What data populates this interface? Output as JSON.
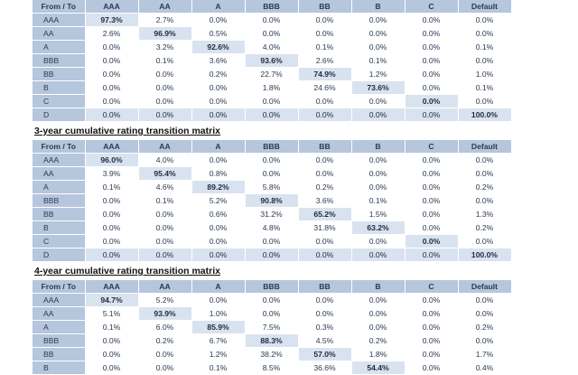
{
  "headers": [
    "From / To",
    "AAA",
    "AA",
    "A",
    "BBB",
    "BB",
    "B",
    "C",
    "Default"
  ],
  "blocks": [
    {
      "title": "",
      "rows": [
        {
          "label": "AAA",
          "values": [
            "97.3%",
            "2.7%",
            "0.0%",
            "0.0%",
            "0.0%",
            "0.0%",
            "0.0%",
            "0.0%"
          ]
        },
        {
          "label": "AA",
          "values": [
            "2.6%",
            "96.9%",
            "0.5%",
            "0.0%",
            "0.0%",
            "0.0%",
            "0.0%",
            "0.0%"
          ]
        },
        {
          "label": "A",
          "values": [
            "0.0%",
            "3.2%",
            "92.6%",
            "4.0%",
            "0.1%",
            "0.0%",
            "0.0%",
            "0.1%"
          ]
        },
        {
          "label": "BBB",
          "values": [
            "0.0%",
            "0.1%",
            "3.6%",
            "93.6%",
            "2.6%",
            "0.1%",
            "0.0%",
            "0.0%"
          ]
        },
        {
          "label": "BB",
          "values": [
            "0.0%",
            "0.0%",
            "0.2%",
            "22.7%",
            "74.9%",
            "1.2%",
            "0.0%",
            "1.0%"
          ]
        },
        {
          "label": "B",
          "values": [
            "0.0%",
            "0.0%",
            "0.0%",
            "1.8%",
            "24.6%",
            "73.6%",
            "0.0%",
            "0.1%"
          ]
        },
        {
          "label": "C",
          "values": [
            "0.0%",
            "0.0%",
            "0.0%",
            "0.0%",
            "0.0%",
            "0.0%",
            "0.0%",
            "0.0%"
          ]
        },
        {
          "label": "D",
          "values": [
            "0.0%",
            "0.0%",
            "0.0%",
            "0.0%",
            "0.0%",
            "0.0%",
            "0.0%",
            "100.0%"
          ]
        }
      ]
    },
    {
      "title": "3-year cumulative rating transition matrix",
      "rows": [
        {
          "label": "AAA",
          "values": [
            "96.0%",
            "4.0%",
            "0.0%",
            "0.0%",
            "0.0%",
            "0.0%",
            "0.0%",
            "0.0%"
          ]
        },
        {
          "label": "AA",
          "values": [
            "3.9%",
            "95.4%",
            "0.8%",
            "0.0%",
            "0.0%",
            "0.0%",
            "0.0%",
            "0.0%"
          ]
        },
        {
          "label": "A",
          "values": [
            "0.1%",
            "4.6%",
            "89.2%",
            "5.8%",
            "0.2%",
            "0.0%",
            "0.0%",
            "0.2%"
          ]
        },
        {
          "label": "BBB",
          "values": [
            "0.0%",
            "0.1%",
            "5.2%",
            "90.8%",
            "3.6%",
            "0.1%",
            "0.0%",
            "0.0%"
          ]
        },
        {
          "label": "BB",
          "values": [
            "0.0%",
            "0.0%",
            "0.6%",
            "31.2%",
            "65.2%",
            "1.5%",
            "0.0%",
            "1.3%"
          ]
        },
        {
          "label": "B",
          "values": [
            "0.0%",
            "0.0%",
            "0.0%",
            "4.8%",
            "31.8%",
            "63.2%",
            "0.0%",
            "0.2%"
          ]
        },
        {
          "label": "C",
          "values": [
            "0.0%",
            "0.0%",
            "0.0%",
            "0.0%",
            "0.0%",
            "0.0%",
            "0.0%",
            "0.0%"
          ]
        },
        {
          "label": "D",
          "values": [
            "0.0%",
            "0.0%",
            "0.0%",
            "0.0%",
            "0.0%",
            "0.0%",
            "0.0%",
            "100.0%"
          ]
        }
      ]
    },
    {
      "title": "4-year cumulative rating transition matrix",
      "rows": [
        {
          "label": "AAA",
          "values": [
            "94.7%",
            "5.2%",
            "0.0%",
            "0.0%",
            "0.0%",
            "0.0%",
            "0.0%",
            "0.0%"
          ]
        },
        {
          "label": "AA",
          "values": [
            "5.1%",
            "93.9%",
            "1.0%",
            "0.0%",
            "0.0%",
            "0.0%",
            "0.0%",
            "0.0%"
          ]
        },
        {
          "label": "A",
          "values": [
            "0.1%",
            "6.0%",
            "85.9%",
            "7.5%",
            "0.3%",
            "0.0%",
            "0.0%",
            "0.2%"
          ]
        },
        {
          "label": "BBB",
          "values": [
            "0.0%",
            "0.2%",
            "6.7%",
            "88.3%",
            "4.5%",
            "0.2%",
            "0.0%",
            "0.0%"
          ]
        },
        {
          "label": "BB",
          "values": [
            "0.0%",
            "0.0%",
            "1.2%",
            "38.2%",
            "57.0%",
            "1.8%",
            "0.0%",
            "1.7%"
          ]
        },
        {
          "label": "B",
          "values": [
            "0.0%",
            "0.0%",
            "0.1%",
            "8.5%",
            "36.6%",
            "54.4%",
            "0.0%",
            "0.4%"
          ]
        }
      ]
    }
  ]
}
